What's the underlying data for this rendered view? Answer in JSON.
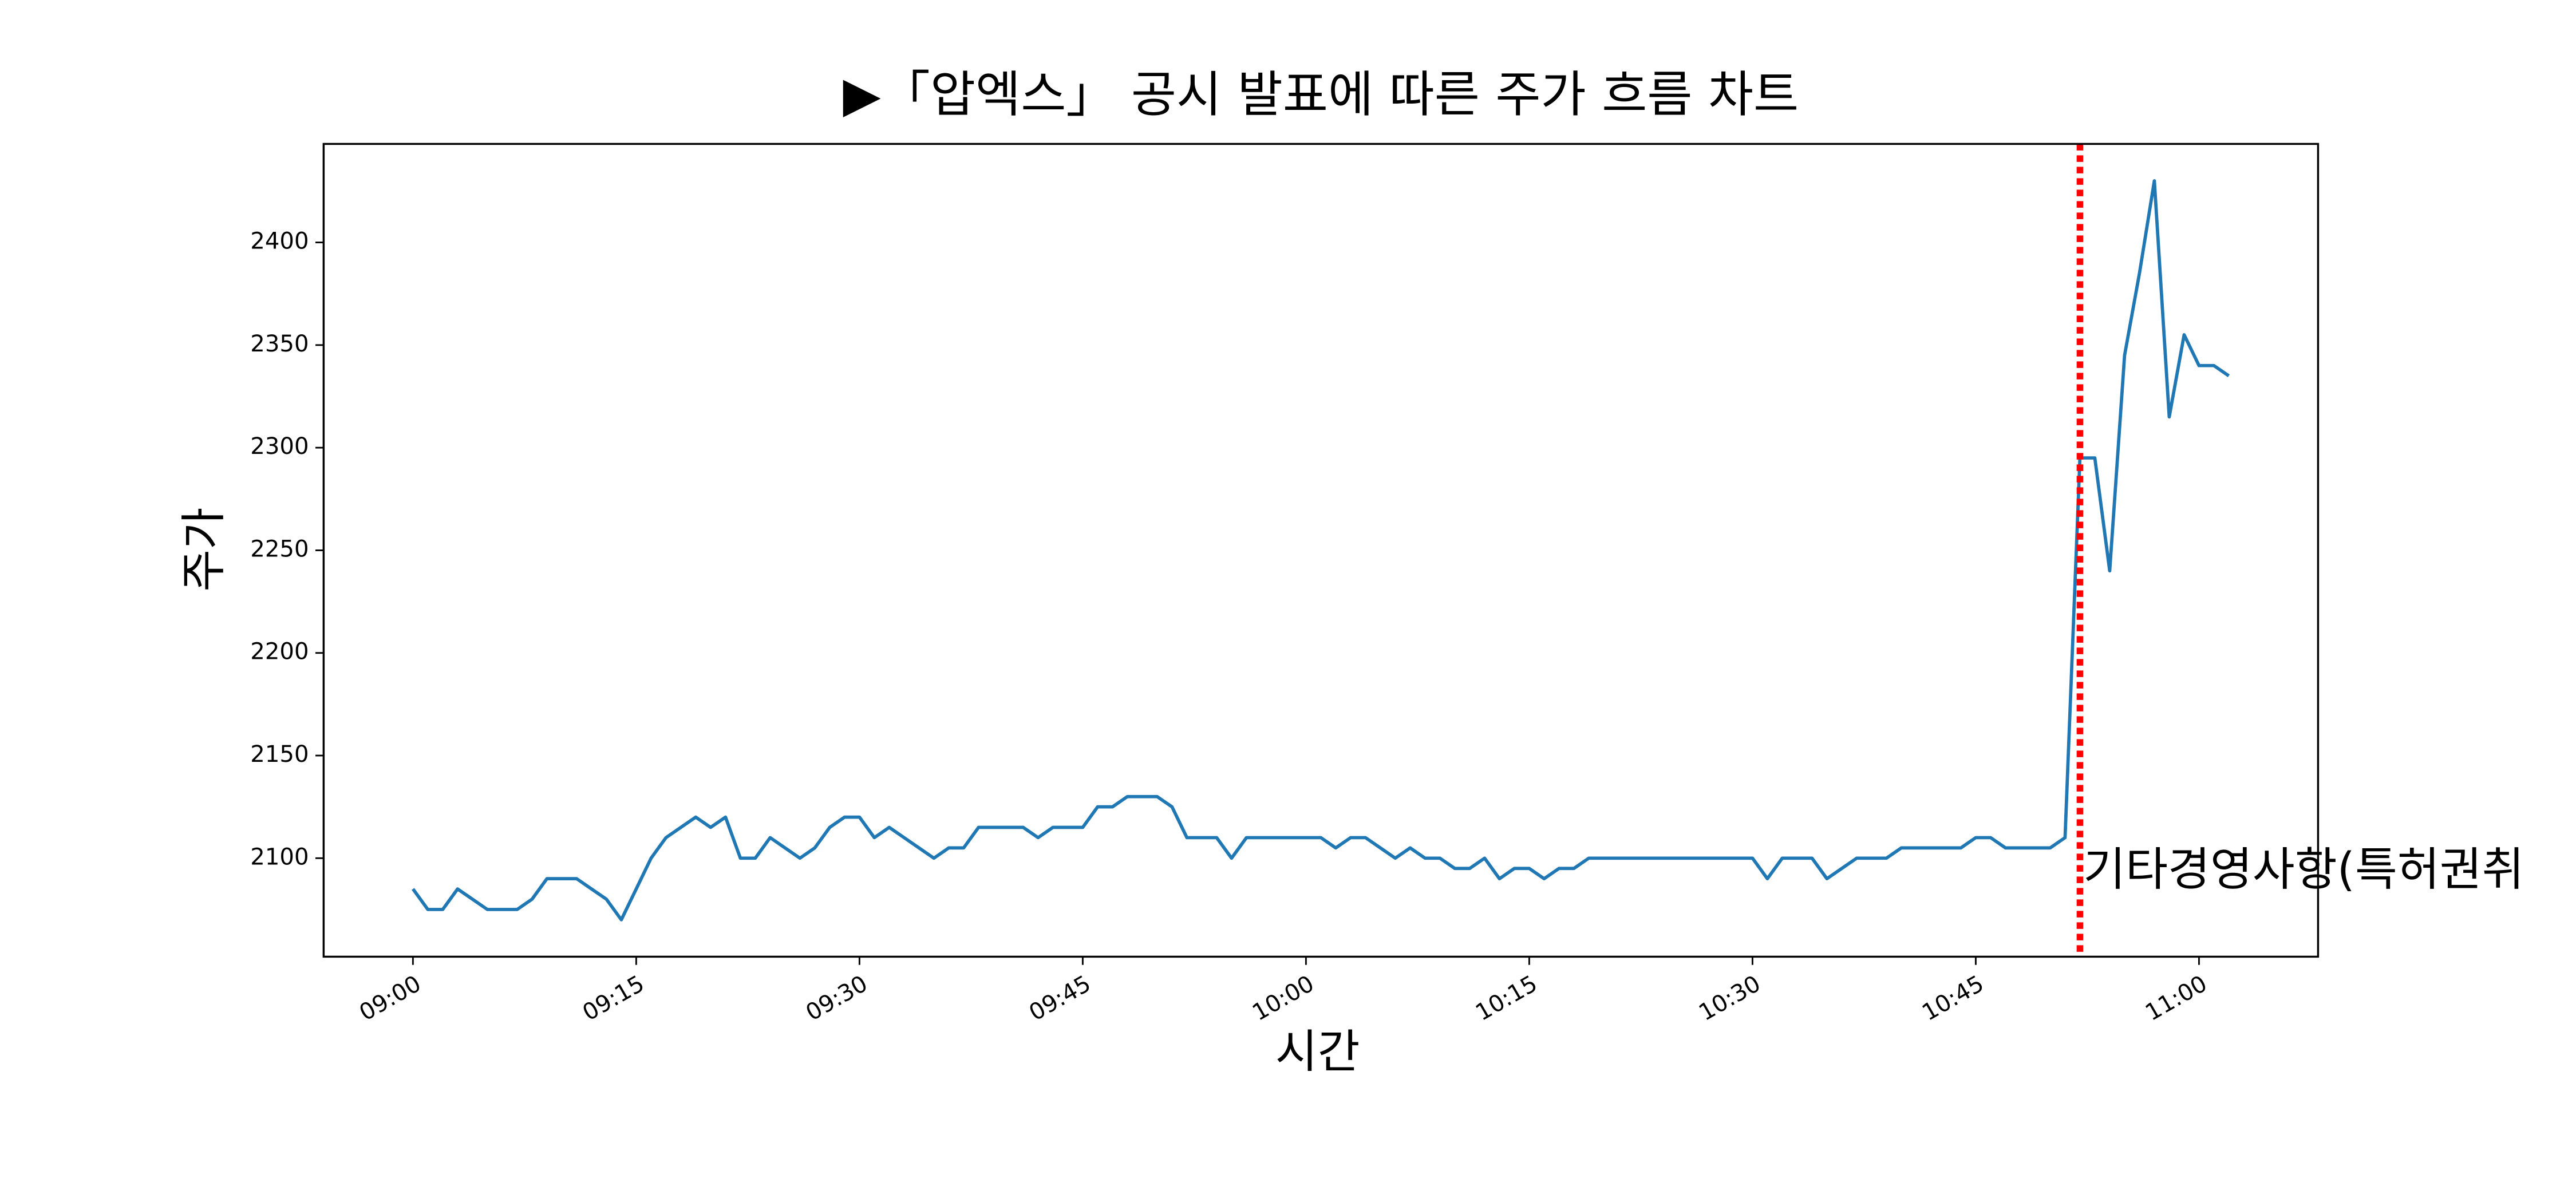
{
  "chart_data": {
    "type": "line",
    "title": "▶「압엑스」 공시 발표에 따른 주가 흐름 차트",
    "xlabel": "시간",
    "ylabel": "주가",
    "x": [
      "09:00",
      "09:01",
      "09:02",
      "09:03",
      "09:04",
      "09:05",
      "09:06",
      "09:07",
      "09:08",
      "09:09",
      "09:10",
      "09:11",
      "09:12",
      "09:13",
      "09:14",
      "09:15",
      "09:16",
      "09:17",
      "09:18",
      "09:19",
      "09:20",
      "09:21",
      "09:22",
      "09:23",
      "09:24",
      "09:25",
      "09:26",
      "09:27",
      "09:28",
      "09:29",
      "09:30",
      "09:31",
      "09:32",
      "09:33",
      "09:34",
      "09:35",
      "09:36",
      "09:37",
      "09:38",
      "09:39",
      "09:40",
      "09:41",
      "09:42",
      "09:43",
      "09:44",
      "09:45",
      "09:46",
      "09:47",
      "09:48",
      "09:49",
      "09:50",
      "09:51",
      "09:52",
      "09:53",
      "09:54",
      "09:55",
      "09:56",
      "09:57",
      "09:58",
      "09:59",
      "10:00",
      "10:01",
      "10:02",
      "10:03",
      "10:04",
      "10:05",
      "10:06",
      "10:07",
      "10:08",
      "10:09",
      "10:10",
      "10:11",
      "10:12",
      "10:13",
      "10:14",
      "10:15",
      "10:16",
      "10:17",
      "10:18",
      "10:19",
      "10:20",
      "10:21",
      "10:22",
      "10:23",
      "10:24",
      "10:25",
      "10:26",
      "10:27",
      "10:28",
      "10:29",
      "10:30",
      "10:31",
      "10:32",
      "10:33",
      "10:34",
      "10:35",
      "10:36",
      "10:37",
      "10:38",
      "10:39",
      "10:40",
      "10:41",
      "10:42",
      "10:43",
      "10:44",
      "10:45",
      "10:46",
      "10:47",
      "10:48",
      "10:49",
      "10:50",
      "10:51",
      "10:52",
      "10:53",
      "10:54",
      "10:55",
      "10:56",
      "10:57",
      "10:58",
      "10:59",
      "11:00",
      "11:01",
      "11:02"
    ],
    "series": [
      {
        "color": "#1f77b4",
        "values": [
          2085,
          2075,
          2075,
          2085,
          2080,
          2075,
          2075,
          2075,
          2080,
          2090,
          2090,
          2090,
          2085,
          2080,
          2070,
          2085,
          2100,
          2110,
          2115,
          2120,
          2115,
          2120,
          2100,
          2100,
          2110,
          2105,
          2100,
          2105,
          2115,
          2120,
          2120,
          2110,
          2115,
          2110,
          2105,
          2100,
          2105,
          2105,
          2115,
          2115,
          2115,
          2115,
          2110,
          2115,
          2115,
          2115,
          2125,
          2125,
          2130,
          2130,
          2130,
          2125,
          2110,
          2110,
          2110,
          2100,
          2110,
          2110,
          2110,
          2110,
          2110,
          2110,
          2105,
          2110,
          2110,
          2105,
          2100,
          2105,
          2100,
          2100,
          2095,
          2095,
          2100,
          2090,
          2095,
          2095,
          2090,
          2095,
          2095,
          2100,
          2100,
          2100,
          2100,
          2100,
          2100,
          2100,
          2100,
          2100,
          2100,
          2100,
          2100,
          2090,
          2100,
          2100,
          2100,
          2090,
          2095,
          2100,
          2100,
          2100,
          2105,
          2105,
          2105,
          2105,
          2105,
          2110,
          2110,
          2105,
          2105,
          2105,
          2105,
          2110,
          2295,
          2295,
          2240,
          2345,
          2385,
          2430,
          2315,
          2355,
          2340,
          2340,
          2335
        ]
      }
    ],
    "xlim": [
      "08:54",
      "11:08"
    ],
    "xticks": [
      "09:00",
      "09:15",
      "09:30",
      "09:45",
      "10:00",
      "10:15",
      "10:30",
      "10:45",
      "11:00"
    ],
    "ylim": [
      2052,
      2448
    ],
    "yticks": [
      2100,
      2150,
      2200,
      2250,
      2300,
      2350,
      2400
    ],
    "vline": {
      "x": "10:52",
      "color": "red",
      "style": "dotted"
    },
    "annotation": {
      "text": "기타경영사항(특허권취",
      "x": "10:52",
      "y": 2093
    }
  }
}
